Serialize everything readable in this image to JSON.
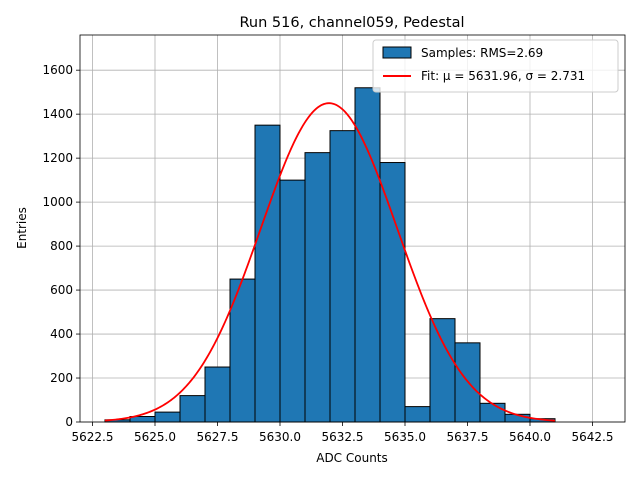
{
  "chart_data": {
    "type": "bar",
    "title": "Run 516, channel059, Pedestal",
    "xlabel": "ADC Counts",
    "ylabel": "Entries",
    "xlim": [
      5622.0,
      5643.8
    ],
    "ylim": [
      0,
      1760
    ],
    "grid": true,
    "legend_position": "top-right",
    "x_ticks": [
      5622.5,
      5625.0,
      5627.5,
      5630.0,
      5632.5,
      5635.0,
      5637.5,
      5640.0,
      5642.5
    ],
    "x_tick_labels": [
      "5622.5",
      "5625.0",
      "5627.5",
      "5630.0",
      "5632.5",
      "5635.0",
      "5637.5",
      "5640.0",
      "5642.5"
    ],
    "y_ticks": [
      0,
      200,
      400,
      600,
      800,
      1000,
      1200,
      1400,
      1600
    ],
    "y_tick_labels": [
      "0",
      "200",
      "400",
      "600",
      "800",
      "1000",
      "1200",
      "1400",
      "1600"
    ],
    "histogram": {
      "name": "Samples: RMS=2.69",
      "color": "#1f77b4",
      "edge_color": "#000000",
      "bin_edges": [
        5623,
        5624,
        5625,
        5626,
        5627,
        5628,
        5629,
        5630,
        5631,
        5632,
        5633,
        5634,
        5635,
        5636,
        5637,
        5638,
        5639,
        5640,
        5641
      ],
      "counts": [
        10,
        25,
        45,
        120,
        250,
        650,
        1350,
        1100,
        1225,
        1325,
        1520,
        1180,
        70,
        470,
        360,
        85,
        35,
        15
      ]
    },
    "fit": {
      "name": "Fit: μ = 5631.96, σ = 2.731",
      "color": "#ff0000",
      "mu": 5631.96,
      "sigma": 2.731,
      "amplitude": 1450,
      "x_range": [
        5623,
        5641
      ]
    }
  }
}
